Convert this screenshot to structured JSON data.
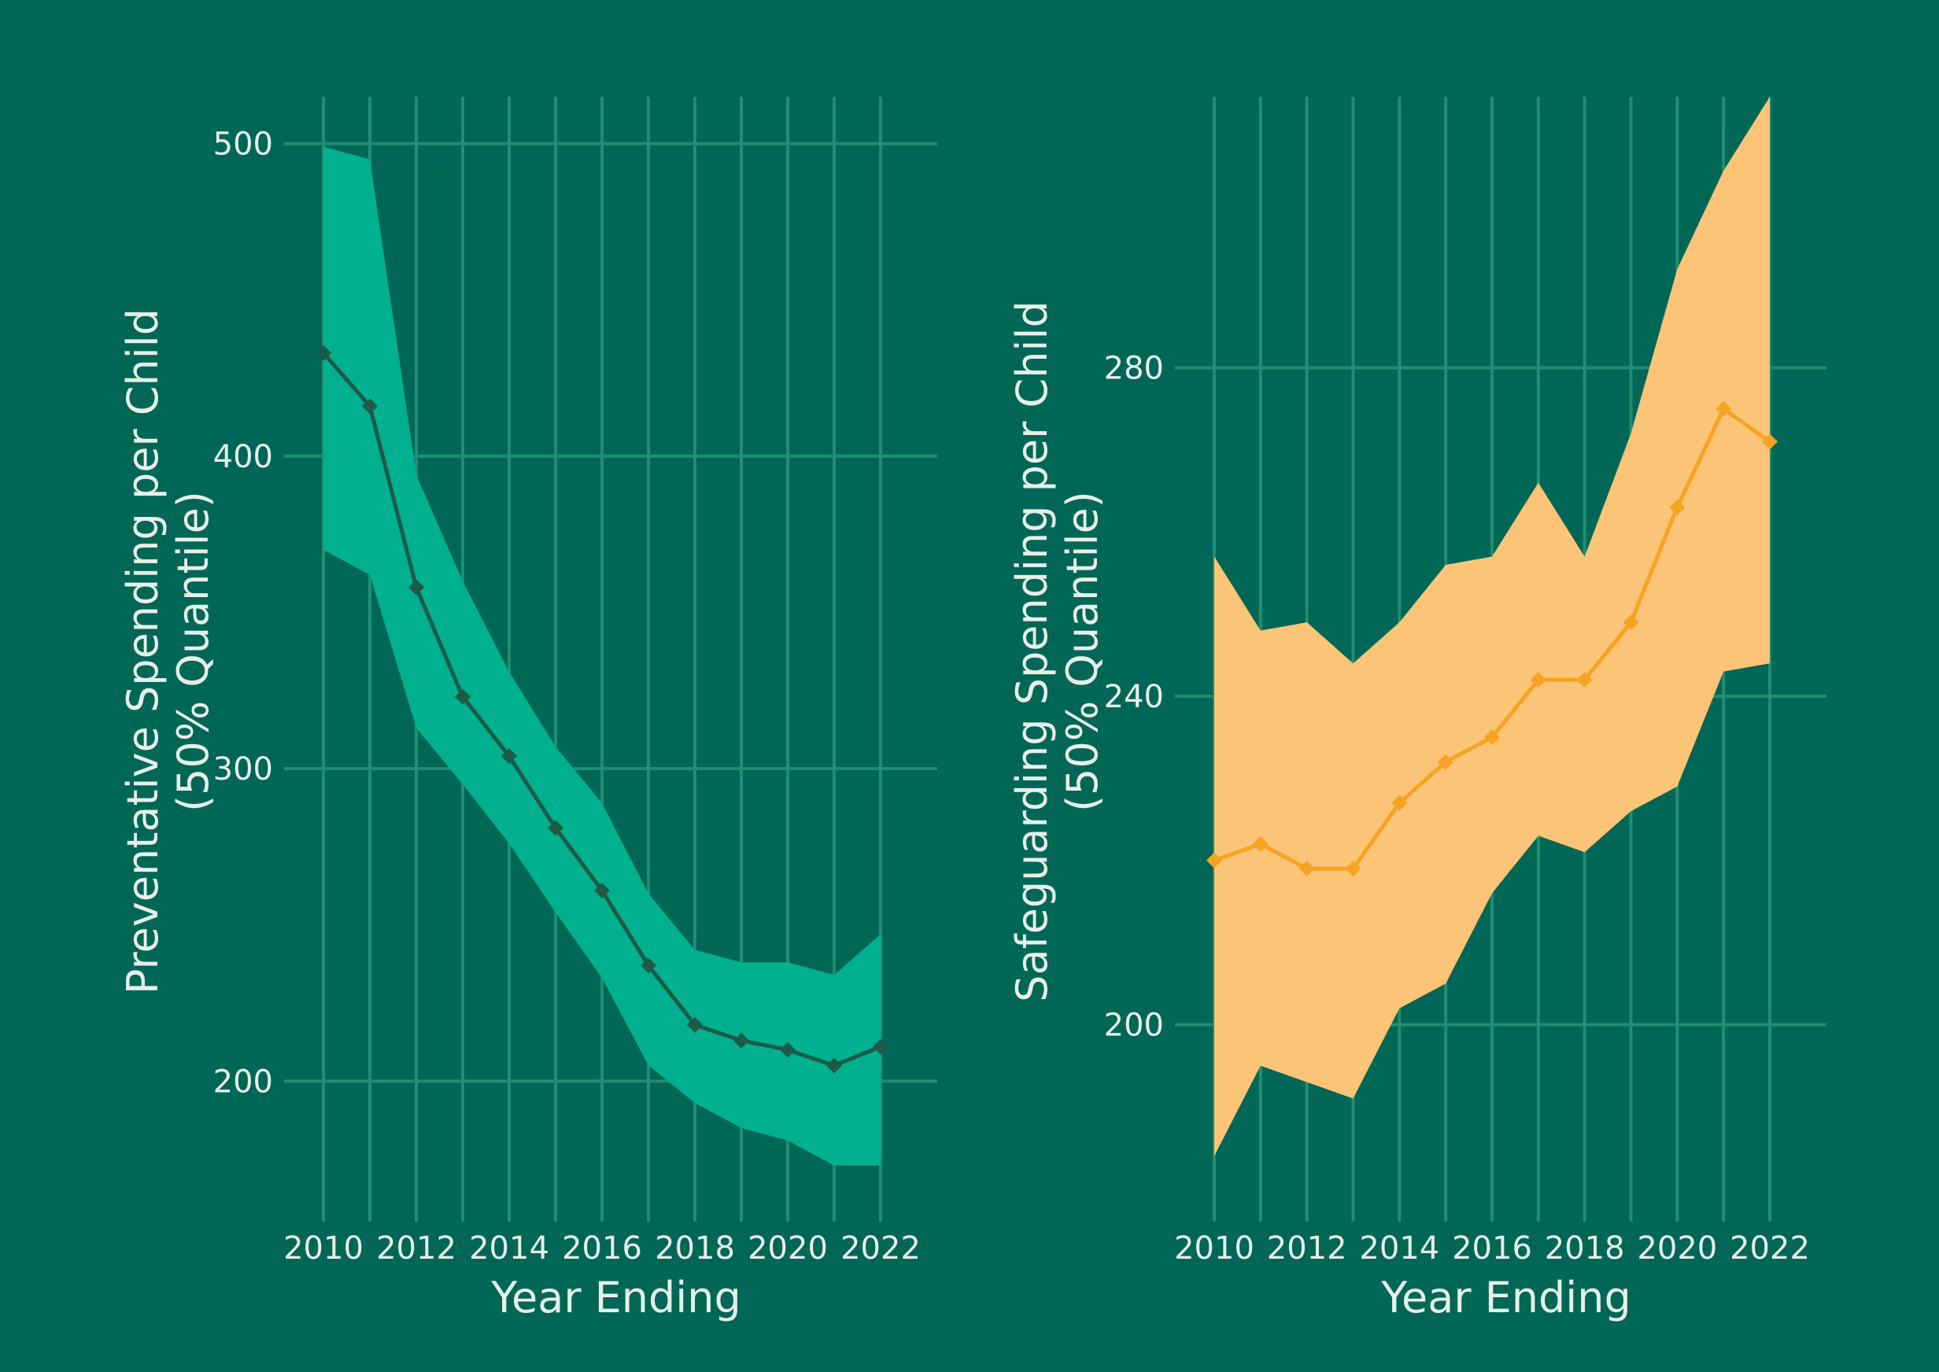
{
  "chart_data": [
    {
      "type": "line",
      "title": "",
      "xlabel": "Year Ending",
      "ylabel": [
        "Preventative Spending per Child",
        "(50% Quantile)"
      ],
      "xlim": [
        2010,
        2022
      ],
      "ylim": [
        155,
        515
      ],
      "x_ticks": [
        "2010",
        "2012",
        "2014",
        "2016",
        "2018",
        "2020",
        "2022"
      ],
      "y_ticks": [
        "200",
        "300",
        "400",
        "500"
      ],
      "grid": true,
      "colors": {
        "band": "#00b08e",
        "line": "#1d5a48"
      },
      "series": [
        {
          "x": [
            2010,
            2011,
            2012,
            2013,
            2014,
            2015,
            2016,
            2017,
            2018,
            2019,
            2020,
            2021,
            2022
          ],
          "median": [
            433,
            416,
            358,
            323,
            304,
            281,
            261,
            237,
            218,
            213,
            210,
            205,
            211
          ],
          "upper": [
            499,
            495,
            394,
            360,
            331,
            307,
            289,
            260,
            242,
            238,
            238,
            234,
            247
          ],
          "lower": [
            370,
            362,
            313,
            295,
            276,
            254,
            233,
            205,
            193,
            185,
            181,
            173,
            173
          ]
        }
      ]
    },
    {
      "type": "line",
      "title": "",
      "xlabel": "Year Ending",
      "ylabel": [
        "Safeguarding Spending per Child",
        "(50% Quantile)"
      ],
      "xlim": [
        2010,
        2022
      ],
      "ylim": [
        176,
        313
      ],
      "x_ticks": [
        "2010",
        "2012",
        "2014",
        "2016",
        "2018",
        "2020",
        "2022"
      ],
      "y_ticks": [
        "200",
        "240",
        "280"
      ],
      "grid": true,
      "colors": {
        "band": "#fcc476",
        "line": "#f7a221"
      },
      "series": [
        {
          "x": [
            2010,
            2011,
            2012,
            2013,
            2014,
            2015,
            2016,
            2017,
            2018,
            2019,
            2020,
            2021,
            2022
          ],
          "median": [
            220,
            222,
            219,
            219,
            227,
            232,
            235,
            242,
            242,
            249,
            263,
            275,
            271
          ],
          "upper": [
            257,
            248,
            249,
            244,
            249,
            256,
            257,
            266,
            257,
            272,
            292,
            304,
            313
          ],
          "lower": [
            184,
            195,
            193,
            191,
            202,
            205,
            216,
            223,
            221,
            226,
            229,
            243,
            244
          ]
        }
      ]
    }
  ]
}
